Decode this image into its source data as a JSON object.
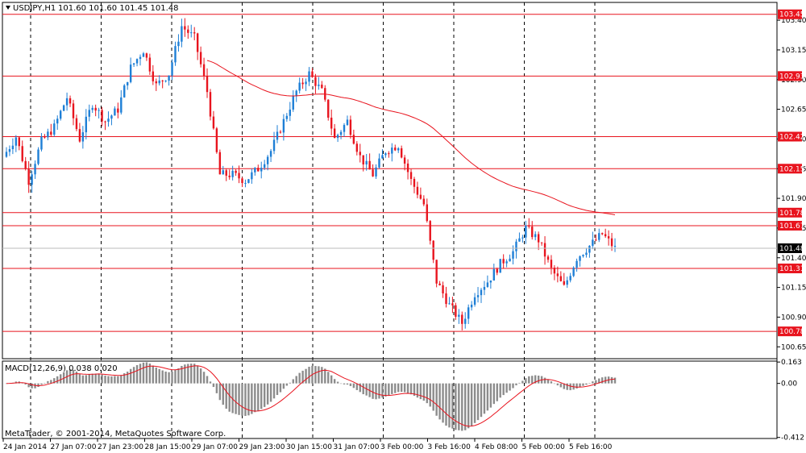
{
  "header": {
    "symbol_text": "USDJPY,H1",
    "ohlc_text": "101.60 101.60 101.45 101.48",
    "menu_icon": "triangle-down-icon"
  },
  "macd_panel": {
    "label": "MACD(12,26,9) 0.038 0.020",
    "copyright": "MetaTrader, © 2001-2014, MetaQuotes Software Corp."
  },
  "colors": {
    "bull": "#1e7fd6",
    "bear": "#e8141e",
    "level_line": "#e8141e",
    "ma_line": "#e8141e",
    "macd_hist": "#8c8c8c",
    "signal_line": "#e8141e",
    "current_price_bg": "#000000",
    "level_label_bg": "#e8141e"
  },
  "chart_data": [
    {
      "type": "candlestick",
      "symbol": "USDJPY",
      "timeframe": "H1",
      "ylim": [
        100.55,
        103.55
      ],
      "y_ticks": [
        103.4,
        103.15,
        102.9,
        102.65,
        102.4,
        102.15,
        101.9,
        101.65,
        101.4,
        101.15,
        100.9,
        100.65
      ],
      "x_ticks": [
        "24 Jan 2014",
        "27 Jan 07:00",
        "27 Jan 23:00",
        "28 Jan 15:00",
        "29 Jan 07:00",
        "29 Jan 23:00",
        "30 Jan 15:00",
        "31 Jan 07:00",
        "3 Feb 00:00",
        "3 Feb 16:00",
        "4 Feb 08:00",
        "5 Feb 00:00",
        "5 Feb 16:00"
      ],
      "horizontal_levels": [
        103.45,
        102.93,
        102.42,
        102.15,
        101.78,
        101.67,
        101.31,
        100.78
      ],
      "current_price": 101.48,
      "vertical_grid_count": 9,
      "price_anchors": [
        [
          0,
          102.25
        ],
        [
          4,
          102.42
        ],
        [
          8,
          102.05
        ],
        [
          12,
          102.38
        ],
        [
          16,
          102.5
        ],
        [
          20,
          102.75
        ],
        [
          24,
          102.4
        ],
        [
          28,
          102.7
        ],
        [
          32,
          102.55
        ],
        [
          36,
          102.65
        ],
        [
          40,
          103.0
        ],
        [
          44,
          103.15
        ],
        [
          48,
          102.85
        ],
        [
          52,
          102.95
        ],
        [
          56,
          103.35
        ],
        [
          60,
          103.25
        ],
        [
          64,
          102.8
        ],
        [
          68,
          102.1
        ],
        [
          72,
          102.1
        ],
        [
          76,
          102.05
        ],
        [
          80,
          102.15
        ],
        [
          84,
          102.3
        ],
        [
          88,
          102.55
        ],
        [
          92,
          102.8
        ],
        [
          96,
          102.95
        ],
        [
          100,
          102.8
        ],
        [
          104,
          102.4
        ],
        [
          108,
          102.55
        ],
        [
          112,
          102.25
        ],
        [
          116,
          102.1
        ],
        [
          120,
          102.3
        ],
        [
          124,
          102.35
        ],
        [
          128,
          102.05
        ],
        [
          132,
          101.85
        ],
        [
          136,
          101.2
        ],
        [
          140,
          101.0
        ],
        [
          144,
          100.85
        ],
        [
          148,
          101.1
        ],
        [
          152,
          101.2
        ],
        [
          156,
          101.35
        ],
        [
          160,
          101.45
        ],
        [
          164,
          101.65
        ],
        [
          168,
          101.55
        ],
        [
          172,
          101.3
        ],
        [
          176,
          101.15
        ],
        [
          180,
          101.4
        ],
        [
          184,
          101.5
        ],
        [
          188,
          101.6
        ],
        [
          192,
          101.48
        ]
      ],
      "total_bars": 192
    },
    {
      "type": "macd",
      "parameters": [
        12,
        26,
        9
      ],
      "main_value": 0.038,
      "signal_value": 0.02,
      "y_ticks": [
        0.163,
        0.0,
        -0.412
      ],
      "ylim": [
        -0.42,
        0.17
      ]
    }
  ]
}
